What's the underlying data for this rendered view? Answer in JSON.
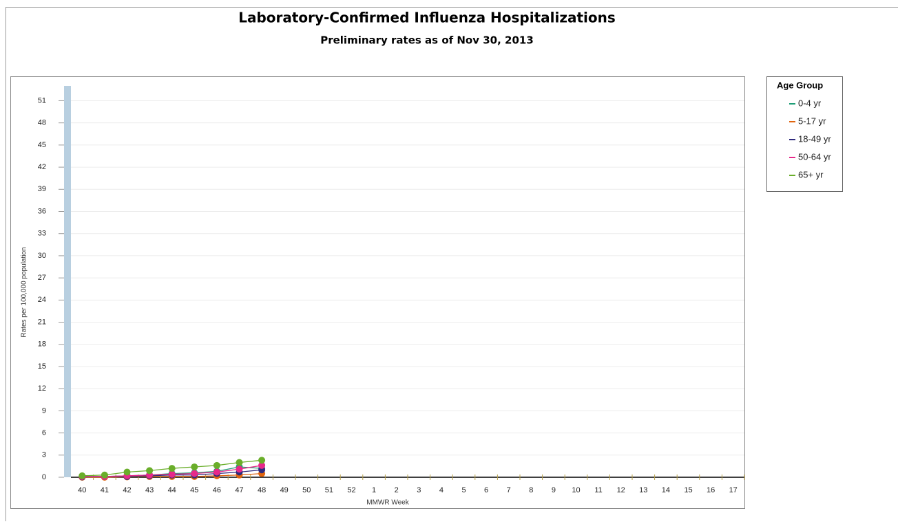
{
  "chart_data": {
    "type": "line",
    "title": "Laboratory-Confirmed Influenza Hospitalizations",
    "subtitle": "Preliminary rates as of Nov 30, 2013",
    "x_label": "MMWR Week",
    "y_label": "Rates per 100,000 population",
    "legend_title": "Age Group",
    "legend_position": "right",
    "grid": true,
    "categories": [
      "40",
      "41",
      "42",
      "43",
      "44",
      "45",
      "46",
      "47",
      "48",
      "49",
      "50",
      "51",
      "52",
      "1",
      "2",
      "3",
      "4",
      "5",
      "6",
      "7",
      "8",
      "9",
      "10",
      "11",
      "12",
      "13",
      "14",
      "15",
      "16",
      "17"
    ],
    "ylim": [
      0,
      53
    ],
    "yticks": [
      0,
      3,
      6,
      9,
      12,
      15,
      18,
      21,
      24,
      27,
      30,
      33,
      36,
      39,
      42,
      45,
      48,
      51
    ],
    "series": [
      {
        "name": "0-4 yr",
        "color": "#1f9e77",
        "values": [
          0.1,
          0.1,
          0.2,
          0.3,
          0.5,
          0.6,
          0.8,
          1.4,
          1.2,
          null,
          null,
          null,
          null,
          null,
          null,
          null,
          null,
          null,
          null,
          null,
          null,
          null,
          null,
          null,
          null,
          null,
          null,
          null,
          null,
          null
        ]
      },
      {
        "name": "5-17 yr",
        "color": "#e0640e",
        "values": [
          0,
          0,
          0.05,
          0.1,
          0.1,
          0.1,
          0.2,
          0.3,
          0.5,
          null,
          null,
          null,
          null,
          null,
          null,
          null,
          null,
          null,
          null,
          null,
          null,
          null,
          null,
          null,
          null,
          null,
          null,
          null,
          null,
          null
        ]
      },
      {
        "name": "18-49 yr",
        "color": "#2f2a7d",
        "values": [
          0.05,
          0.1,
          0.1,
          0.2,
          0.3,
          0.3,
          0.5,
          0.7,
          1.0,
          null,
          null,
          null,
          null,
          null,
          null,
          null,
          null,
          null,
          null,
          null,
          null,
          null,
          null,
          null,
          null,
          null,
          null,
          null,
          null,
          null
        ]
      },
      {
        "name": "50-64 yr",
        "color": "#e7298a",
        "values": [
          0.1,
          0.1,
          0.2,
          0.3,
          0.4,
          0.5,
          0.7,
          1.1,
          1.6,
          null,
          null,
          null,
          null,
          null,
          null,
          null,
          null,
          null,
          null,
          null,
          null,
          null,
          null,
          null,
          null,
          null,
          null,
          null,
          null,
          null
        ]
      },
      {
        "name": "65+ yr",
        "color": "#6aae2a",
        "values": [
          0.2,
          0.3,
          0.7,
          0.9,
          1.2,
          1.4,
          1.6,
          2.0,
          2.3,
          null,
          null,
          null,
          null,
          null,
          null,
          null,
          null,
          null,
          null,
          null,
          null,
          null,
          null,
          null,
          null,
          null,
          null,
          null,
          null,
          null
        ]
      }
    ]
  }
}
